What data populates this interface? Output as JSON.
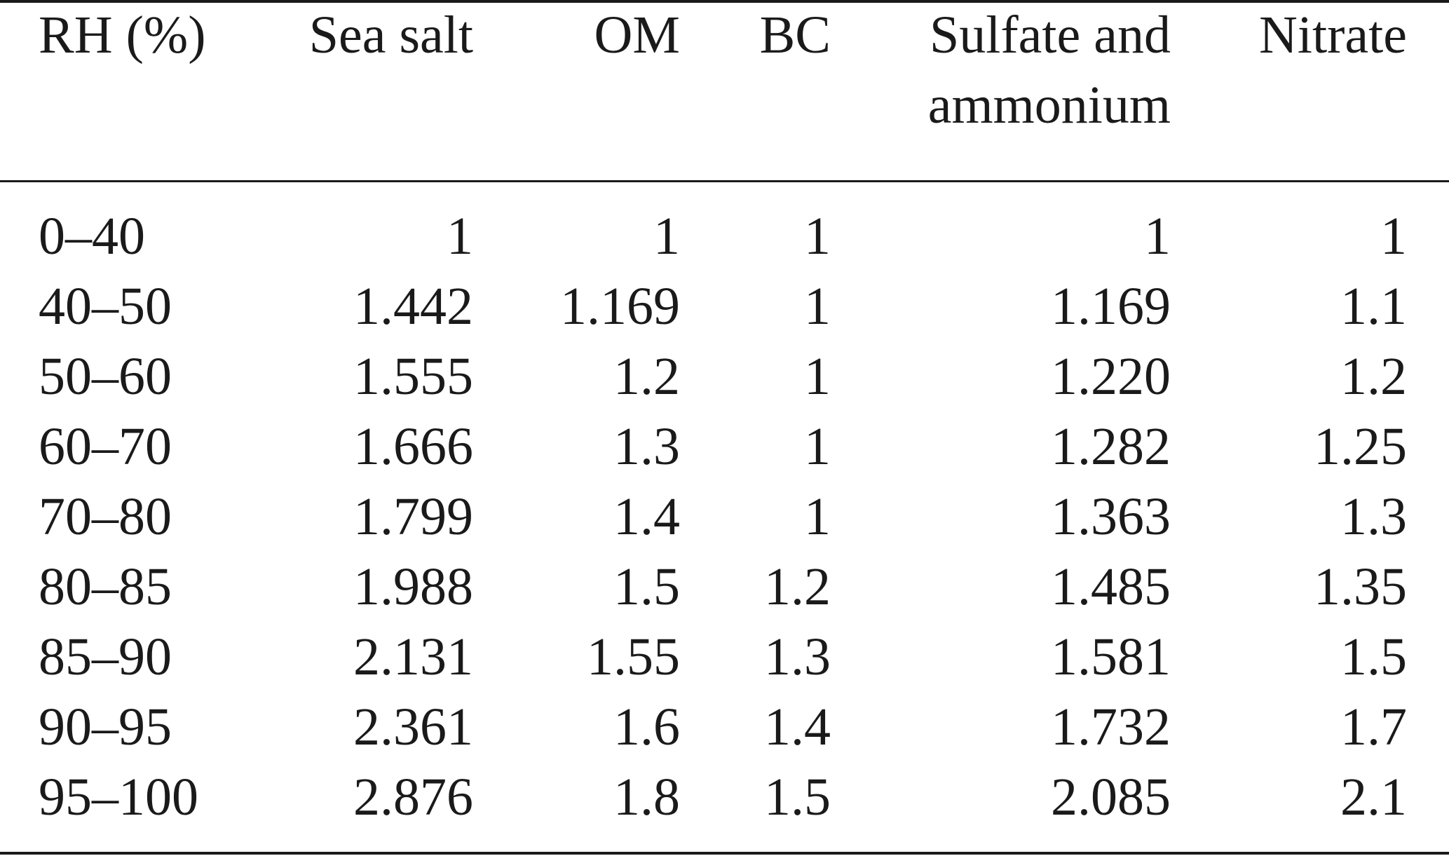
{
  "table": {
    "columns": [
      "RH (%)",
      "Sea salt",
      "OM",
      "BC",
      "Sulfate and ammonium",
      "Nitrate"
    ],
    "header_lines": {
      "rh": "RH (%)",
      "sea_salt": "Sea salt",
      "om": "OM",
      "bc": "BC",
      "sulfate_line1": "Sulfate and",
      "sulfate_line2": "ammonium",
      "nitrate": "Nitrate"
    },
    "rows": [
      [
        "0–40",
        "1",
        "1",
        "1",
        "1",
        "1"
      ],
      [
        "40–50",
        "1.442",
        "1.169",
        "1",
        "1.169",
        "1.1"
      ],
      [
        "50–60",
        "1.555",
        "1.2",
        "1",
        "1.220",
        "1.2"
      ],
      [
        "60–70",
        "1.666",
        "1.3",
        "1",
        "1.282",
        "1.25"
      ],
      [
        "70–80",
        "1.799",
        "1.4",
        "1",
        "1.363",
        "1.3"
      ],
      [
        "80–85",
        "1.988",
        "1.5",
        "1.2",
        "1.485",
        "1.35"
      ],
      [
        "85–90",
        "2.131",
        "1.55",
        "1.3",
        "1.581",
        "1.5"
      ],
      [
        "90–95",
        "2.361",
        "1.6",
        "1.4",
        "1.732",
        "1.7"
      ],
      [
        "95–100",
        "2.876",
        "1.8",
        "1.5",
        "2.085",
        "2.1"
      ]
    ]
  }
}
